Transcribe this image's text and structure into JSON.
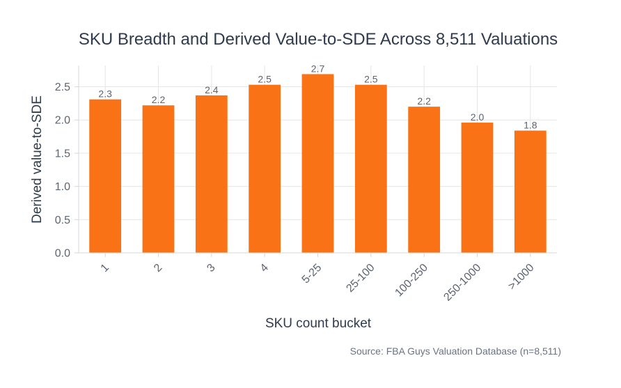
{
  "chart_data": {
    "type": "bar",
    "title": "SKU Breadth and Derived Value-to-SDE Across 8,511 Valuations",
    "xlabel": "SKU count bucket",
    "ylabel": "Derived value-to-SDE",
    "categories": [
      "1",
      "2",
      "3",
      "4",
      "5-25",
      "25-100",
      "100-250",
      "250-1000",
      ">1000"
    ],
    "values": [
      2.31,
      2.22,
      2.37,
      2.53,
      2.69,
      2.53,
      2.2,
      1.96,
      1.84
    ],
    "value_labels": [
      "2.3",
      "2.2",
      "2.4",
      "2.5",
      "2.7",
      "2.5",
      "2.2",
      "2.0",
      "1.8"
    ],
    "ylim": [
      0,
      2.82
    ],
    "yticks": [
      0,
      0.5,
      1,
      1.5,
      2,
      2.5
    ],
    "ytick_labels": [
      "0.0",
      "0.5",
      "1.0",
      "1.5",
      "2.0",
      "2.5"
    ],
    "grid": true,
    "color": "#f97316",
    "source": "Source: FBA Guys Valuation Database (n=8,511)"
  }
}
